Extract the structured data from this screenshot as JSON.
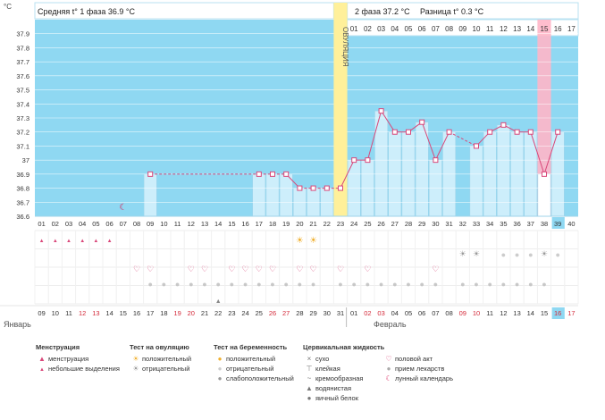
{
  "chart_data": {
    "type": "line",
    "y_unit": "°C",
    "ylim": [
      36.6,
      38.0
    ],
    "y_ticks": [
      "37.9",
      "37.8",
      "37.7",
      "37.6",
      "37.5",
      "37.4",
      "37.3",
      "37.2",
      "37.1",
      "37",
      "36.9",
      "36.8",
      "36.7",
      "36.6"
    ],
    "cycle_days": [
      "01",
      "02",
      "03",
      "04",
      "05",
      "06",
      "07",
      "08",
      "09",
      "10",
      "11",
      "12",
      "13",
      "14",
      "15",
      "16",
      "17",
      "18",
      "19",
      "20",
      "21",
      "22",
      "23",
      "24",
      "25",
      "26",
      "27",
      "28",
      "29",
      "30",
      "31",
      "32",
      "33",
      "34",
      "35",
      "36",
      "37",
      "38",
      "39",
      "40"
    ],
    "phase2_days": [
      "01",
      "02",
      "03",
      "04",
      "05",
      "06",
      "07",
      "08",
      "09",
      "10",
      "11",
      "12",
      "13",
      "14",
      "15",
      "16",
      "17"
    ],
    "dates": [
      "09",
      "10",
      "11",
      "12",
      "13",
      "14",
      "15",
      "16",
      "17",
      "18",
      "19",
      "20",
      "21",
      "22",
      "23",
      "24",
      "25",
      "26",
      "27",
      "28",
      "29",
      "30",
      "31",
      "01",
      "02",
      "03",
      "04",
      "05",
      "06",
      "07",
      "08",
      "09",
      "10",
      "11",
      "12",
      "13",
      "14",
      "15",
      "16",
      "17"
    ],
    "temperatures": [
      null,
      null,
      null,
      null,
      null,
      null,
      null,
      null,
      36.9,
      null,
      null,
      null,
      null,
      null,
      null,
      null,
      36.9,
      36.9,
      36.9,
      36.8,
      36.8,
      36.8,
      36.8,
      37.0,
      37.0,
      37.35,
      37.2,
      37.2,
      37.27,
      37.0,
      37.2,
      null,
      37.1,
      37.2,
      37.25,
      37.2,
      37.2,
      36.9,
      37.2,
      null
    ],
    "ovulation_day_index": 22,
    "ovulation_label": "ОВУЛЯЦИЯ",
    "current_day_index": 38,
    "highlight_day_index": 37,
    "coverline": 36.9
  },
  "header": {
    "phase1": "Средняя t° 1 фаза 36.9 °C",
    "phase2": "2 фаза 37.2 °C",
    "diff": "Разница t° 0.3 °C"
  },
  "months": {
    "jan": "Январь",
    "feb": "Февраль"
  },
  "colors": {
    "sky": "#8fd8f2",
    "bar": "#cdeefb",
    "barBorder": "#9fd3ea",
    "line": "#d9487a",
    "ovul": "#fff09a",
    "highlight": "#ffb6c8",
    "weekend": "#d42a3a"
  },
  "rows": {
    "menstruation": [
      0,
      1,
      2,
      3,
      4,
      5
    ],
    "moon": [
      6
    ],
    "ovulation_positive": [
      19,
      20
    ],
    "ovulation_negative": [
      31,
      32,
      37
    ],
    "pregnancy_negative": [
      34,
      35,
      36,
      38
    ],
    "hearts": [
      7,
      8,
      11,
      12,
      14,
      15,
      16,
      17,
      19,
      20,
      22,
      24,
      29
    ],
    "pills": [
      8,
      9,
      10,
      11,
      12,
      13,
      14,
      15,
      16,
      17,
      18,
      19,
      20,
      22,
      23,
      24,
      25,
      26,
      27,
      28,
      29,
      31,
      32,
      33,
      34,
      35,
      36,
      37
    ],
    "drop": [
      13
    ]
  },
  "legend": {
    "menstruation": {
      "title": "Менструация",
      "items": [
        "менструация",
        "небольшие выделения"
      ]
    },
    "ovulation_test": {
      "title": "Тест на овуляцию",
      "items": [
        "положительный",
        "отрицательный"
      ]
    },
    "pregnancy_test": {
      "title": "Тест на беременность",
      "items": [
        "положительный",
        "отрицательный",
        "слабоположительный"
      ]
    },
    "cervical": {
      "title": "Цервикальная жидкость",
      "items": [
        "сухо",
        "клейкая",
        "кремообразная",
        "водянистая",
        "яичный белок"
      ]
    },
    "other": {
      "items": [
        "половой акт",
        "прием лекарств",
        "лунный календарь"
      ]
    }
  }
}
